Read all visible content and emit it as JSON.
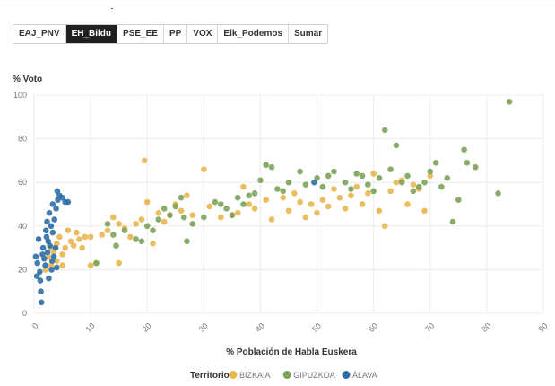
{
  "tabs": [
    {
      "label": "EAJ_PNV",
      "active": false
    },
    {
      "label": "EH_Bildu",
      "active": true
    },
    {
      "label": "PSE_EE",
      "active": false
    },
    {
      "label": "PP",
      "active": false
    },
    {
      "label": "VOX",
      "active": false
    },
    {
      "label": "Elk_Podemos",
      "active": false
    },
    {
      "label": "Sumar",
      "active": false
    }
  ],
  "chart_data": {
    "type": "scatter",
    "title": "",
    "ylabel": "% Voto",
    "xlabel": "% Población de Habla Euskera",
    "xlim": [
      0,
      90
    ],
    "ylim": [
      0,
      100
    ],
    "xticks": [
      0,
      10,
      20,
      30,
      40,
      50,
      60,
      70,
      80,
      90
    ],
    "yticks": [
      0,
      20,
      40,
      60,
      80,
      100
    ],
    "grid": true,
    "legend": {
      "title": "Territorio",
      "placement": "bottom-center"
    },
    "series": [
      {
        "name": "BIZKAIA",
        "color": "#e8b64c",
        "points": [
          [
            2,
            20
          ],
          [
            2.5,
            26
          ],
          [
            3,
            22
          ],
          [
            3,
            30
          ],
          [
            3.5,
            28
          ],
          [
            4,
            24
          ],
          [
            4,
            32
          ],
          [
            4.5,
            35
          ],
          [
            5,
            27
          ],
          [
            5,
            22
          ],
          [
            5.5,
            30
          ],
          [
            6,
            38
          ],
          [
            6.5,
            33
          ],
          [
            7,
            31
          ],
          [
            7.5,
            37
          ],
          [
            8,
            34
          ],
          [
            8.5,
            30
          ],
          [
            9,
            35
          ],
          [
            10,
            35
          ],
          [
            10,
            22
          ],
          [
            11,
            23
          ],
          [
            12,
            36
          ],
          [
            13,
            38
          ],
          [
            14,
            44
          ],
          [
            15,
            41
          ],
          [
            15,
            23
          ],
          [
            16,
            39
          ],
          [
            17,
            35
          ],
          [
            18,
            41
          ],
          [
            19,
            43
          ],
          [
            19.5,
            70
          ],
          [
            20,
            51
          ],
          [
            21,
            32
          ],
          [
            22,
            46
          ],
          [
            23,
            42
          ],
          [
            24,
            45
          ],
          [
            25,
            50
          ],
          [
            26,
            47
          ],
          [
            27,
            54
          ],
          [
            28,
            45
          ],
          [
            30,
            66
          ],
          [
            31,
            49
          ],
          [
            33,
            44
          ],
          [
            35,
            45
          ],
          [
            36,
            46
          ],
          [
            37,
            58
          ],
          [
            38,
            50
          ],
          [
            39,
            48
          ],
          [
            41,
            52
          ],
          [
            42,
            43
          ],
          [
            44,
            53
          ],
          [
            45,
            47
          ],
          [
            46,
            55
          ],
          [
            47,
            51
          ],
          [
            48,
            44
          ],
          [
            49,
            50
          ],
          [
            50,
            46
          ],
          [
            51,
            52
          ],
          [
            52,
            49
          ],
          [
            53,
            57
          ],
          [
            54,
            53
          ],
          [
            55,
            48
          ],
          [
            56,
            54
          ],
          [
            57,
            58
          ],
          [
            58,
            50
          ],
          [
            59,
            55
          ],
          [
            60,
            64
          ],
          [
            61,
            47
          ],
          [
            62,
            40
          ],
          [
            63,
            56
          ],
          [
            64,
            60
          ],
          [
            65,
            61
          ],
          [
            66,
            50
          ],
          [
            67,
            59
          ],
          [
            68,
            57
          ],
          [
            69,
            47
          ],
          [
            70,
            63
          ]
        ]
      },
      {
        "name": "GIPUZKOA",
        "color": "#7ca35a",
        "points": [
          [
            11,
            23
          ],
          [
            13,
            41
          ],
          [
            14,
            36
          ],
          [
            14.5,
            31
          ],
          [
            16,
            38
          ],
          [
            18,
            34
          ],
          [
            19,
            33
          ],
          [
            20,
            40
          ],
          [
            21,
            38
          ],
          [
            22,
            43
          ],
          [
            23,
            48
          ],
          [
            24,
            45
          ],
          [
            25,
            49
          ],
          [
            26,
            53
          ],
          [
            26.5,
            44
          ],
          [
            27,
            33
          ],
          [
            28,
            41
          ],
          [
            30,
            44
          ],
          [
            32,
            51
          ],
          [
            33,
            50
          ],
          [
            34,
            48
          ],
          [
            35,
            45
          ],
          [
            36,
            53
          ],
          [
            37,
            50
          ],
          [
            38,
            54
          ],
          [
            39,
            55
          ],
          [
            40,
            61
          ],
          [
            41,
            68
          ],
          [
            42,
            67
          ],
          [
            43,
            57
          ],
          [
            44,
            56
          ],
          [
            45,
            60
          ],
          [
            47,
            65
          ],
          [
            48,
            59
          ],
          [
            50,
            62
          ],
          [
            51,
            58
          ],
          [
            52,
            63
          ],
          [
            53,
            65
          ],
          [
            55,
            60
          ],
          [
            56,
            57
          ],
          [
            57,
            64
          ],
          [
            58,
            63
          ],
          [
            59,
            59
          ],
          [
            60,
            56
          ],
          [
            61,
            62
          ],
          [
            62,
            84
          ],
          [
            63,
            66
          ],
          [
            64,
            77
          ],
          [
            65,
            60
          ],
          [
            66,
            63
          ],
          [
            67,
            56
          ],
          [
            68,
            58
          ],
          [
            69,
            60
          ],
          [
            70,
            65
          ],
          [
            71,
            69
          ],
          [
            72,
            58
          ],
          [
            73,
            62
          ],
          [
            74,
            42
          ],
          [
            75,
            52
          ],
          [
            76,
            75
          ],
          [
            76.5,
            69
          ],
          [
            78,
            67
          ],
          [
            82,
            55
          ],
          [
            84,
            97
          ]
        ]
      },
      {
        "name": "ÁLAVA",
        "color": "#2e6da4",
        "points": [
          [
            0.3,
            26
          ],
          [
            0.5,
            17
          ],
          [
            0.6,
            23
          ],
          [
            0.8,
            34
          ],
          [
            1,
            19
          ],
          [
            1.1,
            15
          ],
          [
            1.2,
            10
          ],
          [
            1.3,
            5
          ],
          [
            1.5,
            27
          ],
          [
            1.6,
            30
          ],
          [
            1.8,
            25
          ],
          [
            2,
            22
          ],
          [
            2.1,
            38
          ],
          [
            2.2,
            35
          ],
          [
            2.3,
            42
          ],
          [
            2.4,
            28
          ],
          [
            2.5,
            33
          ],
          [
            2.6,
            16
          ],
          [
            2.8,
            31
          ],
          [
            3,
            40
          ],
          [
            3.1,
            20
          ],
          [
            3.2,
            24
          ],
          [
            3.3,
            37
          ],
          [
            3.5,
            26
          ],
          [
            3.6,
            43
          ],
          [
            3.8,
            30
          ],
          [
            4,
            21
          ],
          [
            4.1,
            56
          ],
          [
            4.2,
            52
          ],
          [
            4.5,
            54
          ],
          [
            5,
            53
          ],
          [
            5.5,
            51
          ],
          [
            6,
            51
          ],
          [
            3.3,
            50
          ],
          [
            2.7,
            46
          ],
          [
            3.9,
            48
          ],
          [
            49.5,
            60
          ]
        ]
      }
    ]
  }
}
